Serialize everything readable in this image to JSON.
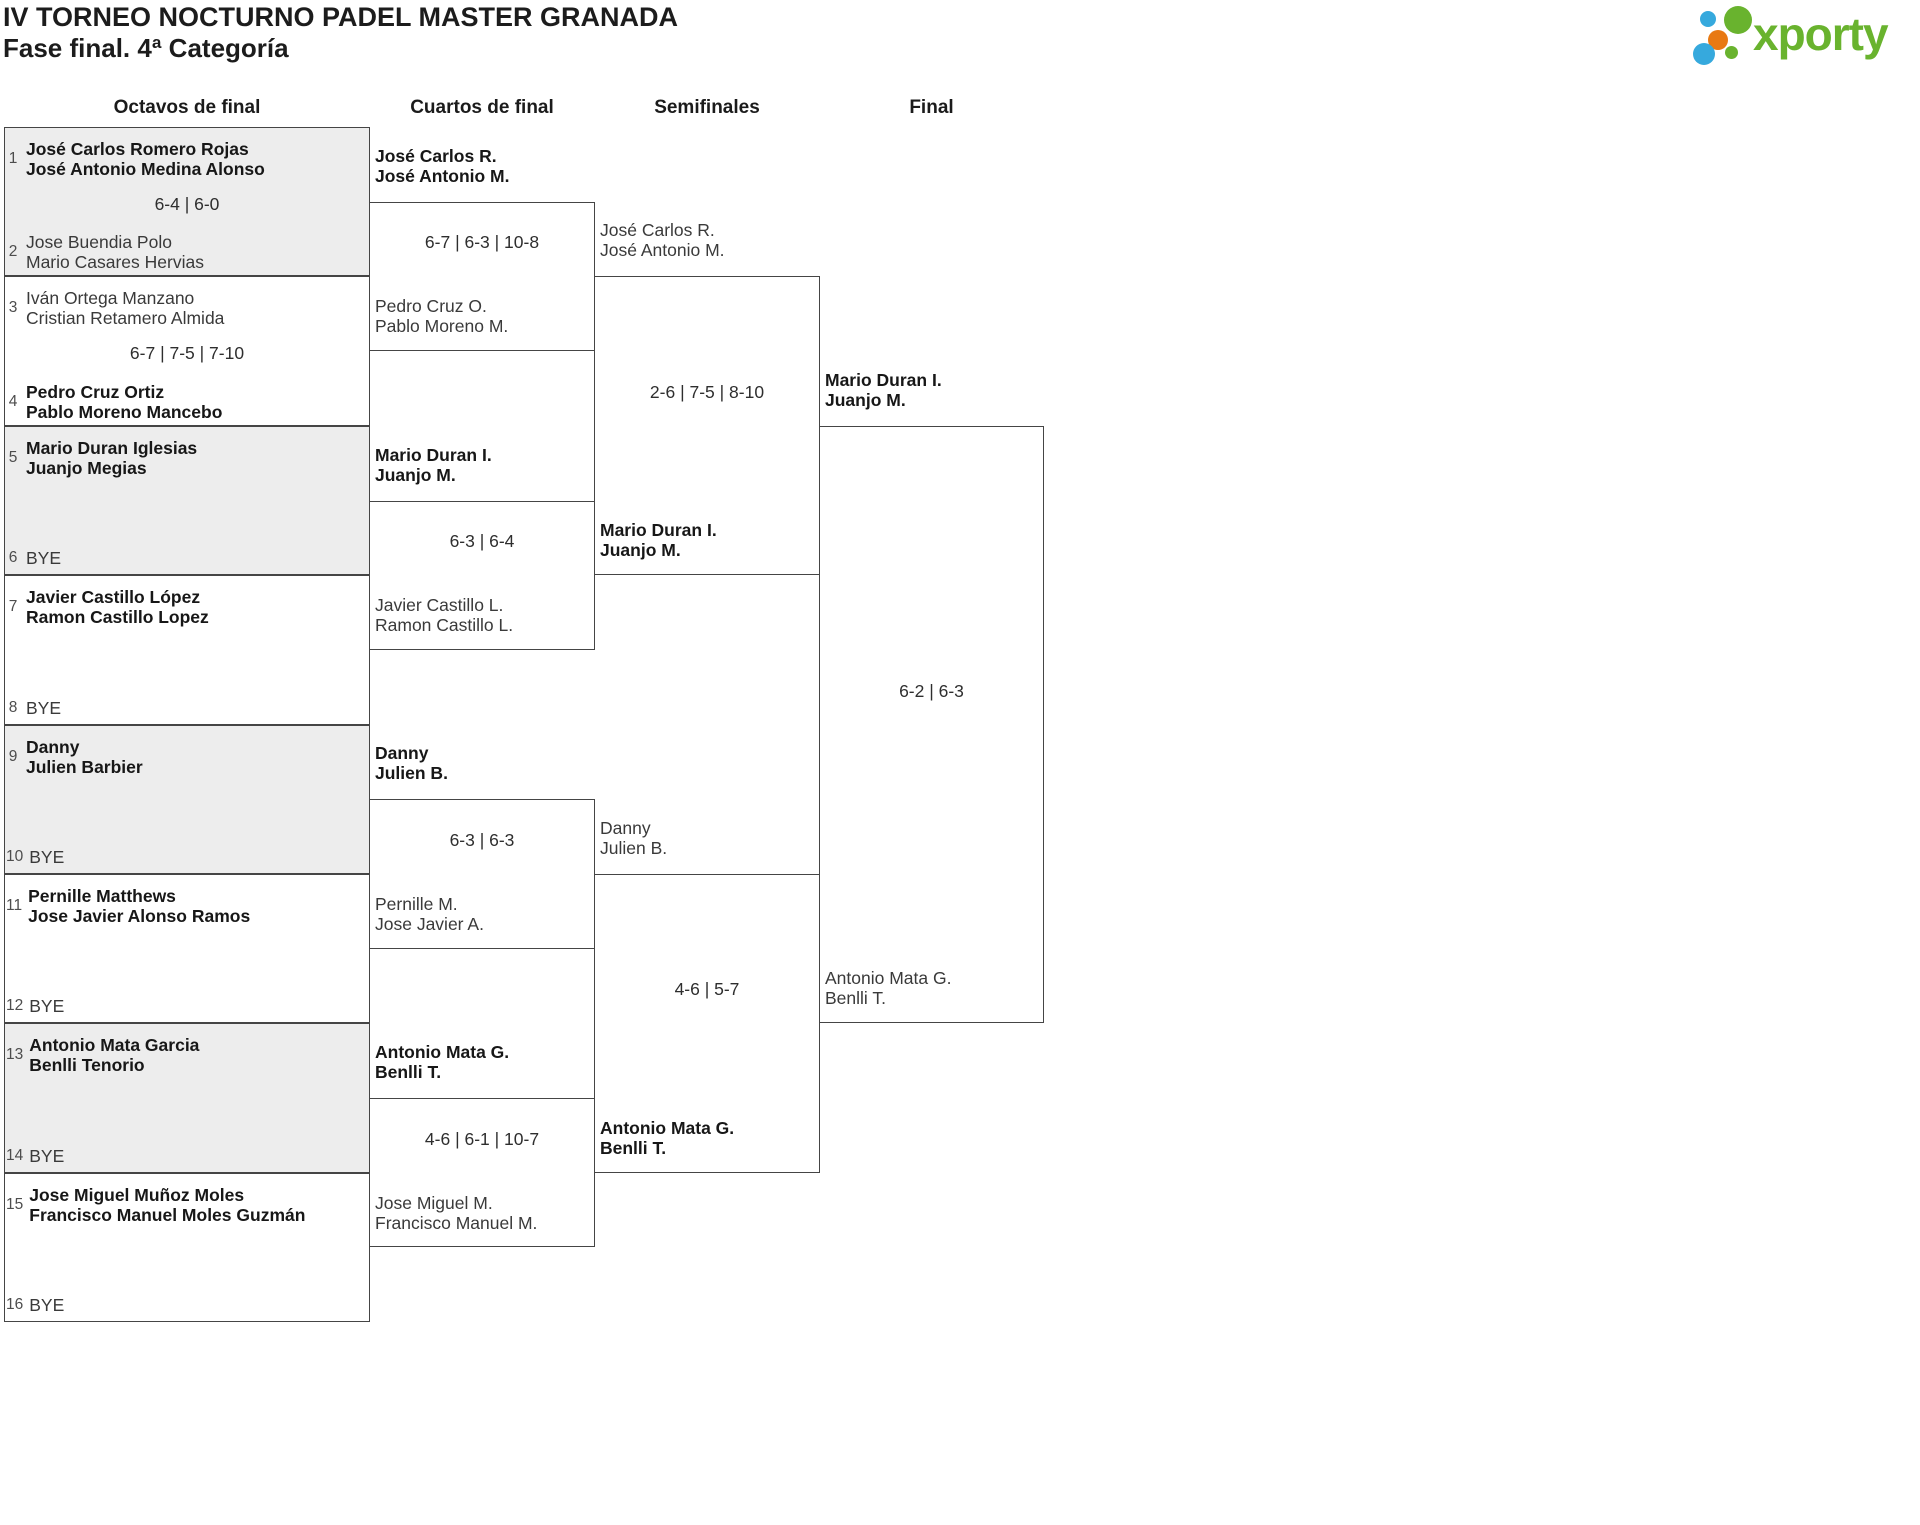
{
  "page": {
    "title_line1": "IV TORNEO NOCTURNO PADEL MASTER GRANADA",
    "title_line2": "Fase final. 4ª Categoría"
  },
  "logo": {
    "text": "xporty",
    "colors": {
      "green": "#69b32e",
      "blue": "#36a9dd",
      "orange": "#e87912"
    }
  },
  "bracket": {
    "rounds": [
      {
        "label": "Octavos de final",
        "matches": [
          {
            "shaded": true,
            "score": "6-4 | 6-0",
            "top": {
              "seed": "1",
              "names": [
                "José Carlos Romero Rojas",
                "José Antonio Medina Alonso"
              ],
              "bold": true
            },
            "bottom": {
              "seed": "2",
              "names": [
                "Jose Buendia Polo",
                "Mario Casares Hervias"
              ],
              "bold": false
            }
          },
          {
            "shaded": false,
            "score": "6-7 | 7-5 | 7-10",
            "top": {
              "seed": "3",
              "names": [
                "Iván Ortega Manzano",
                "Cristian Retamero Almida"
              ],
              "bold": false
            },
            "bottom": {
              "seed": "4",
              "names": [
                "Pedro Cruz Ortiz",
                "Pablo Moreno Mancebo"
              ],
              "bold": true
            }
          },
          {
            "shaded": true,
            "score": "",
            "top": {
              "seed": "5",
              "names": [
                "Mario Duran Iglesias",
                "Juanjo Megias"
              ],
              "bold": true
            },
            "bottom": {
              "seed": "6",
              "names": [
                "BYE"
              ],
              "bold": false,
              "bye": true
            }
          },
          {
            "shaded": false,
            "score": "",
            "top": {
              "seed": "7",
              "names": [
                "Javier Castillo López",
                "Ramon Castillo Lopez"
              ],
              "bold": true
            },
            "bottom": {
              "seed": "8",
              "names": [
                "BYE"
              ],
              "bold": false,
              "bye": true
            }
          },
          {
            "shaded": true,
            "score": "",
            "top": {
              "seed": "9",
              "names": [
                "Danny",
                "Julien Barbier"
              ],
              "bold": true
            },
            "bottom": {
              "seed": "10",
              "names": [
                "BYE"
              ],
              "bold": false,
              "bye": true
            }
          },
          {
            "shaded": false,
            "score": "",
            "top": {
              "seed": "11",
              "names": [
                "Pernille Matthews",
                "Jose Javier Alonso Ramos"
              ],
              "bold": true
            },
            "bottom": {
              "seed": "12",
              "names": [
                "BYE"
              ],
              "bold": false,
              "bye": true
            }
          },
          {
            "shaded": true,
            "score": "",
            "top": {
              "seed": "13",
              "names": [
                "Antonio Mata Garcia",
                "Benlli Tenorio"
              ],
              "bold": true
            },
            "bottom": {
              "seed": "14",
              "names": [
                "BYE"
              ],
              "bold": false,
              "bye": true
            }
          },
          {
            "shaded": false,
            "score": "",
            "top": {
              "seed": "15",
              "names": [
                "Jose Miguel Muñoz Moles",
                "Francisco Manuel Moles Guzmán"
              ],
              "bold": true
            },
            "bottom": {
              "seed": "16",
              "names": [
                "BYE"
              ],
              "bold": false,
              "bye": true
            }
          }
        ]
      },
      {
        "label": "Cuartos de final",
        "matches": [
          {
            "score": "6-7 | 6-3 | 10-8",
            "top": {
              "names": [
                "José Carlos R.",
                "José Antonio M."
              ],
              "bold": true
            },
            "bottom": {
              "names": [
                "Pedro Cruz O.",
                "Pablo Moreno M."
              ],
              "bold": false
            }
          },
          {
            "score": "6-3 | 6-4",
            "top": {
              "names": [
                "Mario Duran I.",
                "Juanjo M."
              ],
              "bold": true
            },
            "bottom": {
              "names": [
                "Javier Castillo L.",
                "Ramon Castillo L."
              ],
              "bold": false
            }
          },
          {
            "score": "6-3 | 6-3",
            "top": {
              "names": [
                "Danny",
                "Julien B."
              ],
              "bold": true
            },
            "bottom": {
              "names": [
                "Pernille M.",
                "Jose Javier A."
              ],
              "bold": false
            }
          },
          {
            "score": "4-6 | 6-1 | 10-7",
            "top": {
              "names": [
                "Antonio Mata G.",
                "Benlli T."
              ],
              "bold": true
            },
            "bottom": {
              "names": [
                "Jose Miguel M.",
                "Francisco Manuel M."
              ],
              "bold": false
            }
          }
        ]
      },
      {
        "label": "Semifinales",
        "matches": [
          {
            "score": "2-6 | 7-5 | 8-10",
            "top": {
              "names": [
                "José Carlos R.",
                "José Antonio M."
              ],
              "bold": false
            },
            "bottom": {
              "names": [
                "Mario Duran I.",
                "Juanjo M."
              ],
              "bold": true
            }
          },
          {
            "score": "4-6 | 5-7",
            "top": {
              "names": [
                "Danny",
                "Julien B."
              ],
              "bold": false
            },
            "bottom": {
              "names": [
                "Antonio Mata G.",
                "Benlli T."
              ],
              "bold": true
            }
          }
        ]
      },
      {
        "label": "Final",
        "matches": [
          {
            "score": "6-2 | 6-3",
            "top": {
              "names": [
                "Mario Duran I.",
                "Juanjo M."
              ],
              "bold": true
            },
            "bottom": {
              "names": [
                "Antonio Mata G.",
                "Benlli T."
              ],
              "bold": false
            }
          }
        ]
      }
    ]
  }
}
